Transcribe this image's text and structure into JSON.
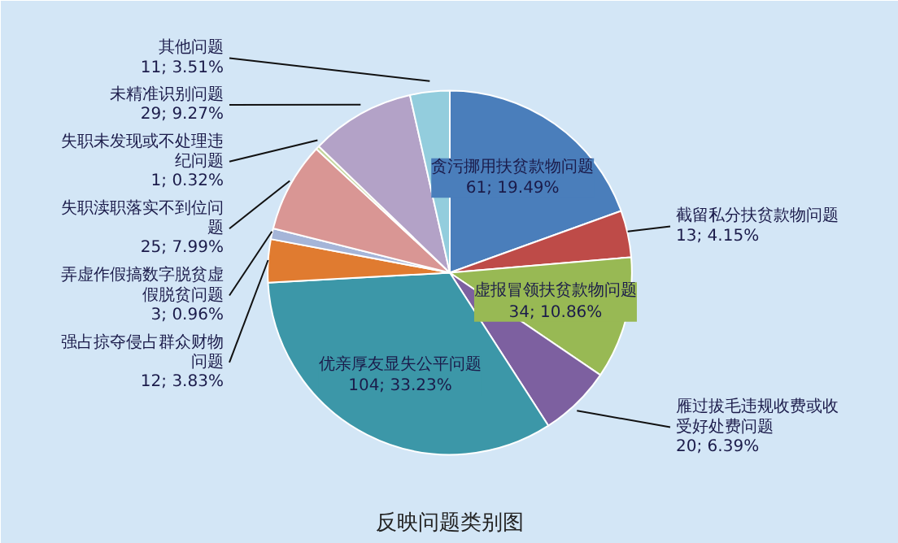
{
  "chart_data": {
    "type": "pie",
    "title": "反映问题类别图",
    "categories": [
      "贪污挪用扶贫款物问题",
      "截留私分扶贫款物问题",
      "虚报冒领扶贫款物问题",
      "雁过拔毛违规收费或收受好处费问题",
      "优亲厚友显失公平问题",
      "强占掠夺侵占群众财物问题",
      "弄虚作假搞数字脱贫虚假脱贫问题",
      "失职渎职落实不到位问题",
      "失职未发现或不处理违纪问题",
      "未精准识别问题",
      "其他问题"
    ],
    "values": [
      61,
      13,
      34,
      20,
      104,
      12,
      3,
      25,
      1,
      29,
      11
    ],
    "value_labels": [
      "61; 19.49%",
      "13; 4.15%",
      "34; 10.86%",
      "20; 6.39%",
      "104; 33.23%",
      "12; 3.83%",
      "3; 0.96%",
      "25; 7.99%",
      "1; 0.32%",
      "29; 9.27%",
      "11; 3.51%"
    ],
    "colors": [
      "#4a7ebb",
      "#be4b48",
      "#98b954",
      "#7d60a0",
      "#3c97a8",
      "#e07b30",
      "#a5b5d8",
      "#d99694",
      "#c3d69b",
      "#b3a2c7",
      "#93cddd"
    ]
  }
}
